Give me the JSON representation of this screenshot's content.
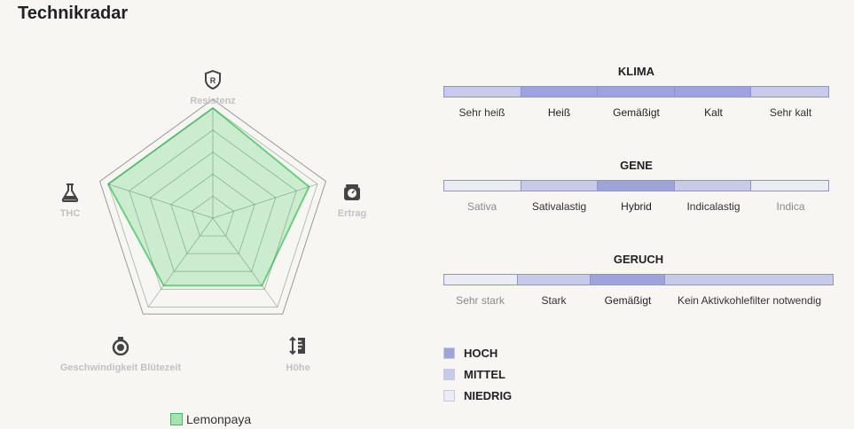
{
  "title": "Technikradar",
  "chart_data": {
    "type": "radar",
    "axes": [
      "Resistenz",
      "Ertrag",
      "Höhe",
      "Geschwindigkeit Blütezeit",
      "THC"
    ],
    "series": [
      {
        "name": "Lemonpaya",
        "values": [
          5,
          4.6,
          3.8,
          3.8,
          5
        ],
        "color": "#65d27e"
      }
    ],
    "max_scale": [
      5,
      5,
      5,
      5,
      5
    ],
    "rings": 5,
    "scale_max": 5,
    "icons": [
      "shield-r-icon",
      "scale-weight-icon",
      "height-ruler-icon",
      "stopwatch-icon",
      "flask-icon"
    ]
  },
  "legend": {
    "label": "Lemonpaya",
    "color": "#a6e3b2"
  },
  "colors": {
    "hoch": "#9ea2dd",
    "mittel": "#c8cae9",
    "niedrig": "#ebebf3",
    "outline": "#8e91d6"
  },
  "scales": [
    {
      "title": "KLIMA",
      "segments": [
        {
          "label": "Sehr heiß",
          "level": "mittel"
        },
        {
          "label": "Heiß",
          "level": "hoch"
        },
        {
          "label": "Gemäßigt",
          "level": "hoch"
        },
        {
          "label": "Kalt",
          "level": "hoch"
        },
        {
          "label": "Sehr kalt",
          "level": "mittel"
        }
      ]
    },
    {
      "title": "GENE",
      "segments": [
        {
          "label": "Sativa",
          "level": "niedrig"
        },
        {
          "label": "Sativalastig",
          "level": "mittel"
        },
        {
          "label": "Hybrid",
          "level": "hoch"
        },
        {
          "label": "Indicalastig",
          "level": "mittel"
        },
        {
          "label": "Indica",
          "level": "niedrig"
        }
      ]
    },
    {
      "title": "GERUCH",
      "segments": [
        {
          "label": "Sehr stark",
          "level": "niedrig"
        },
        {
          "label": "Stark",
          "level": "mittel"
        },
        {
          "label": "Gemäßigt",
          "level": "hoch"
        },
        {
          "label": "Kein Aktivkohlefilter notwendig",
          "level": "mittel"
        }
      ]
    }
  ],
  "key": [
    {
      "label": "HOCH",
      "level": "hoch"
    },
    {
      "label": "MITTEL",
      "level": "mittel"
    },
    {
      "label": "NIEDRIG",
      "level": "niedrig"
    }
  ]
}
